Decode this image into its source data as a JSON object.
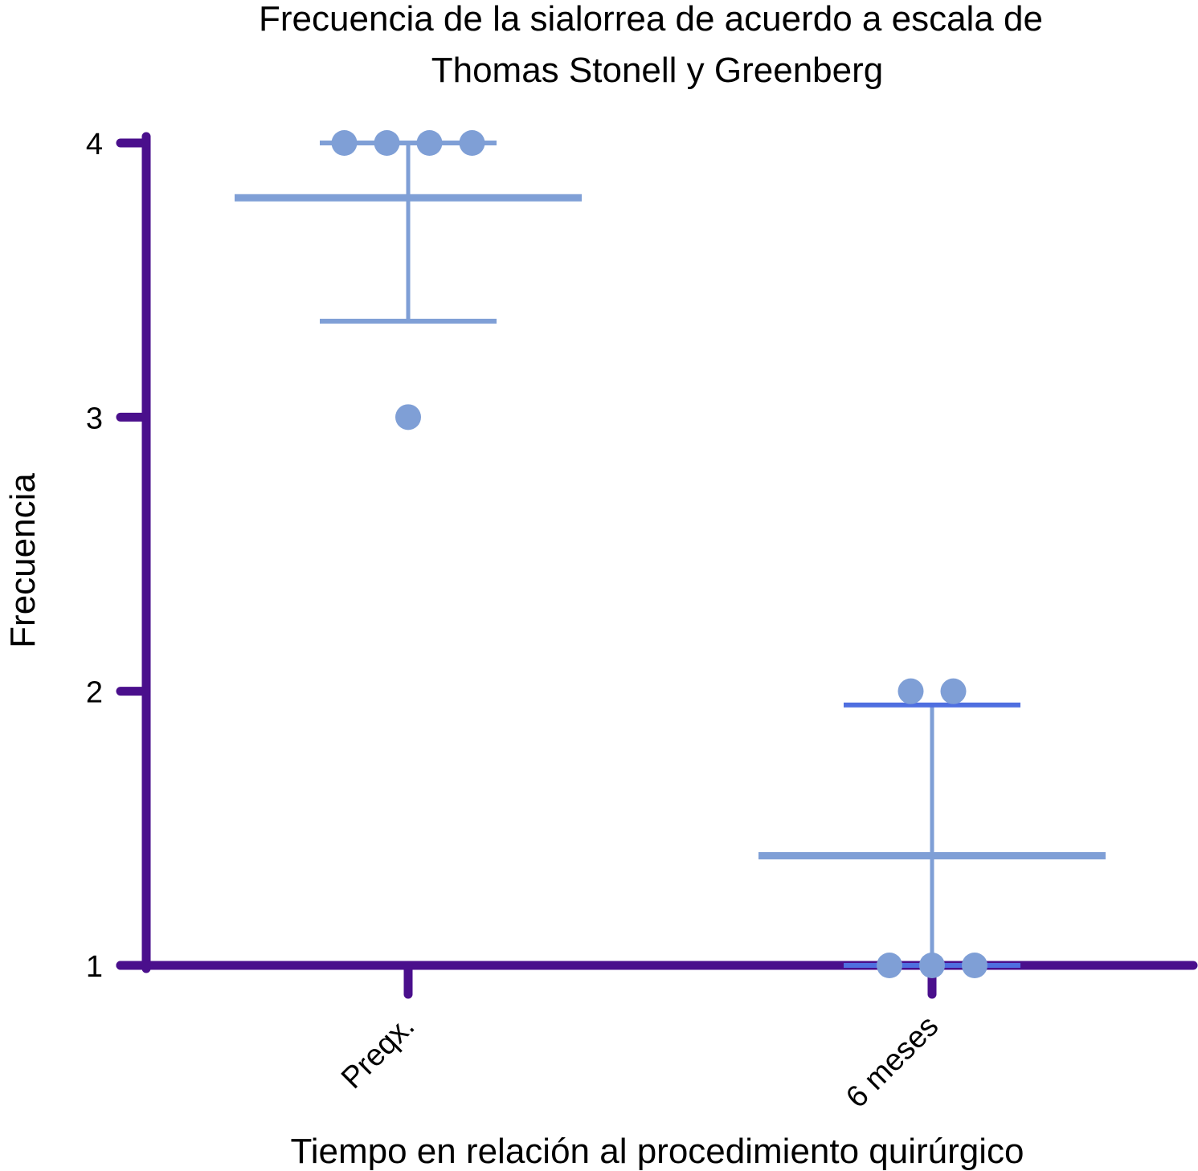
{
  "chart_data": {
    "type": "scatter",
    "title_lines": [
      "Frecuencia de la sialorrea de acuerdo a escala de",
      "Thomas Stonell y Greenberg"
    ],
    "xlabel": "Tiempo en relación al procedimiento quirúrgico",
    "ylabel": "Frecuencia",
    "categories": [
      "Preqx.",
      "6 meses"
    ],
    "ylim": [
      1,
      4
    ],
    "yticks": [
      1,
      2,
      3,
      4
    ],
    "ytick_labels": [
      "1",
      "2",
      "3",
      "4"
    ],
    "grid": false,
    "groups": [
      {
        "category": "Preqx.",
        "points": [
          4,
          4,
          4,
          4,
          3
        ],
        "mean": 3.8,
        "error_low": 3.35,
        "error_high": 4.0
      },
      {
        "category": "6 meses",
        "points": [
          2,
          2,
          1,
          1,
          1
        ],
        "mean": 1.4,
        "error_low": 1.0,
        "error_high": 1.95
      }
    ],
    "colors": {
      "axis": "#4a0f8c",
      "marker": "#7f9fd6",
      "error_bar": "#7f9fd6",
      "error_bar_accent": "#4f6fe0"
    }
  }
}
